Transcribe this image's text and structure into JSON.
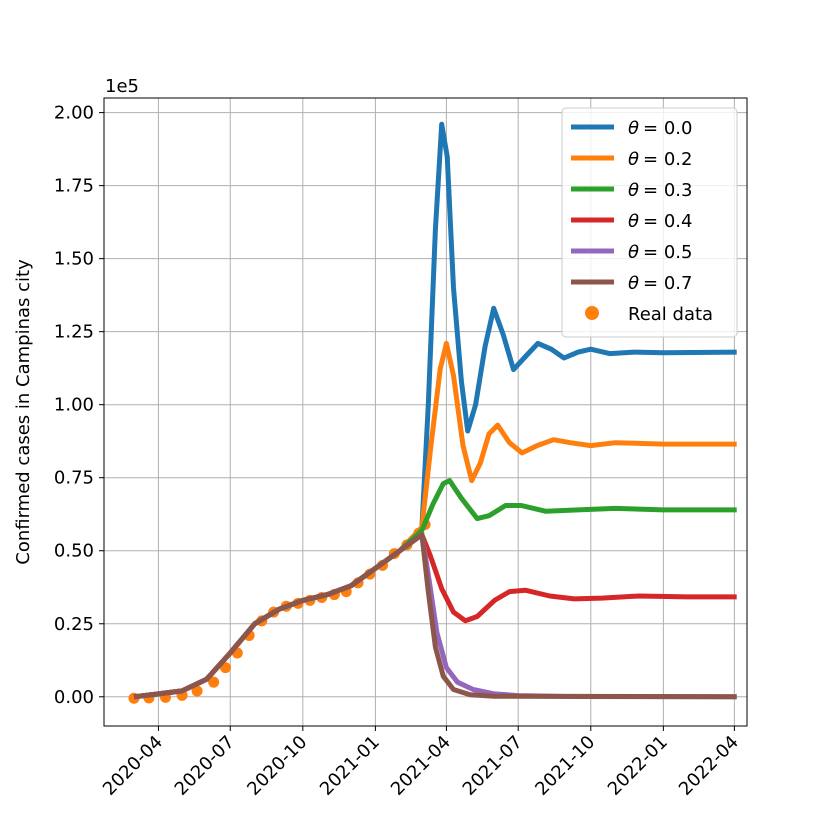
{
  "chart_data": {
    "type": "line",
    "ylabel": "Confirmed cases in Campinas city",
    "y_offset_label": "1e5",
    "ylim": [
      -0.1,
      2.05
    ],
    "y_ticks": [
      0.0,
      0.25,
      0.5,
      0.75,
      1.0,
      1.25,
      1.5,
      1.75,
      2.0
    ],
    "y_tick_labels": [
      "0.00",
      "0.25",
      "0.50",
      "0.75",
      "1.00",
      "1.25",
      "1.50",
      "1.75",
      "2.00"
    ],
    "xlim": [
      "2020-01-23",
      "2022-04-17"
    ],
    "x_ticks": [
      "2020-04-01",
      "2020-07-01",
      "2020-10-01",
      "2021-01-01",
      "2021-04-01",
      "2021-07-01",
      "2021-10-01",
      "2022-01-01",
      "2022-04-01"
    ],
    "x_tick_labels": [
      "2020-04",
      "2020-07",
      "2020-10",
      "2021-01",
      "2021-04",
      "2021-07",
      "2021-10",
      "2022-01",
      "2022-04"
    ],
    "grid": true,
    "legend_position": "top-right",
    "series": [
      {
        "name": "θ = 0.0",
        "legend_prefix": "θ",
        "legend_value": "= 0.0",
        "color": "#1f77b4",
        "points": [
          [
            "2020-03-01",
            0.0
          ],
          [
            "2020-04-01",
            0.01
          ],
          [
            "2020-05-01",
            0.02
          ],
          [
            "2020-06-01",
            0.06
          ],
          [
            "2020-07-01",
            0.15
          ],
          [
            "2020-08-01",
            0.25
          ],
          [
            "2020-09-01",
            0.3
          ],
          [
            "2020-10-01",
            0.33
          ],
          [
            "2020-11-01",
            0.35
          ],
          [
            "2020-12-01",
            0.38
          ],
          [
            "2021-01-01",
            0.44
          ],
          [
            "2021-02-01",
            0.5
          ],
          [
            "2021-03-01",
            0.58
          ],
          [
            "2021-03-09",
            1.0
          ],
          [
            "2021-03-18",
            1.6
          ],
          [
            "2021-03-26",
            1.96
          ],
          [
            "2021-04-02",
            1.85
          ],
          [
            "2021-04-10",
            1.4
          ],
          [
            "2021-04-20",
            1.08
          ],
          [
            "2021-04-28",
            0.91
          ],
          [
            "2021-05-08",
            1.0
          ],
          [
            "2021-05-20",
            1.2
          ],
          [
            "2021-05-31",
            1.33
          ],
          [
            "2021-06-12",
            1.24
          ],
          [
            "2021-06-25",
            1.12
          ],
          [
            "2021-07-12",
            1.17
          ],
          [
            "2021-07-26",
            1.21
          ],
          [
            "2021-08-12",
            1.19
          ],
          [
            "2021-08-28",
            1.16
          ],
          [
            "2021-09-15",
            1.18
          ],
          [
            "2021-10-01",
            1.19
          ],
          [
            "2021-10-25",
            1.175
          ],
          [
            "2021-11-25",
            1.18
          ],
          [
            "2022-01-01",
            1.178
          ],
          [
            "2022-04-04",
            1.18
          ]
        ]
      },
      {
        "name": "θ = 0.2",
        "legend_prefix": "θ",
        "legend_value": "= 0.2",
        "color": "#ff7f0e",
        "points": [
          [
            "2020-03-01",
            0.0
          ],
          [
            "2020-04-01",
            0.01
          ],
          [
            "2020-05-01",
            0.02
          ],
          [
            "2020-06-01",
            0.06
          ],
          [
            "2020-07-01",
            0.15
          ],
          [
            "2020-08-01",
            0.25
          ],
          [
            "2020-09-01",
            0.3
          ],
          [
            "2020-10-01",
            0.33
          ],
          [
            "2020-11-01",
            0.35
          ],
          [
            "2020-12-01",
            0.38
          ],
          [
            "2021-01-01",
            0.44
          ],
          [
            "2021-02-01",
            0.5
          ],
          [
            "2021-03-01",
            0.58
          ],
          [
            "2021-03-12",
            0.85
          ],
          [
            "2021-03-24",
            1.12
          ],
          [
            "2021-04-01",
            1.21
          ],
          [
            "2021-04-10",
            1.1
          ],
          [
            "2021-04-22",
            0.86
          ],
          [
            "2021-05-03",
            0.74
          ],
          [
            "2021-05-14",
            0.8
          ],
          [
            "2021-05-25",
            0.9
          ],
          [
            "2021-06-05",
            0.93
          ],
          [
            "2021-06-20",
            0.87
          ],
          [
            "2021-07-06",
            0.835
          ],
          [
            "2021-07-25",
            0.86
          ],
          [
            "2021-08-15",
            0.88
          ],
          [
            "2021-09-05",
            0.87
          ],
          [
            "2021-10-01",
            0.86
          ],
          [
            "2021-11-01",
            0.87
          ],
          [
            "2022-01-01",
            0.865
          ],
          [
            "2022-04-04",
            0.865
          ]
        ]
      },
      {
        "name": "θ = 0.3",
        "legend_prefix": "θ",
        "legend_value": "= 0.3",
        "color": "#2ca02c",
        "points": [
          [
            "2020-03-01",
            0.0
          ],
          [
            "2020-04-01",
            0.01
          ],
          [
            "2020-05-01",
            0.02
          ],
          [
            "2020-06-01",
            0.06
          ],
          [
            "2020-07-01",
            0.15
          ],
          [
            "2020-08-01",
            0.25
          ],
          [
            "2020-09-01",
            0.3
          ],
          [
            "2020-10-01",
            0.33
          ],
          [
            "2020-11-01",
            0.35
          ],
          [
            "2020-12-01",
            0.38
          ],
          [
            "2021-01-01",
            0.44
          ],
          [
            "2021-02-01",
            0.5
          ],
          [
            "2021-03-01",
            0.57
          ],
          [
            "2021-03-15",
            0.66
          ],
          [
            "2021-03-28",
            0.73
          ],
          [
            "2021-04-05",
            0.74
          ],
          [
            "2021-04-20",
            0.68
          ],
          [
            "2021-05-10",
            0.61
          ],
          [
            "2021-05-25",
            0.62
          ],
          [
            "2021-06-15",
            0.655
          ],
          [
            "2021-07-05",
            0.655
          ],
          [
            "2021-08-05",
            0.635
          ],
          [
            "2021-09-15",
            0.64
          ],
          [
            "2021-11-01",
            0.645
          ],
          [
            "2022-01-01",
            0.64
          ],
          [
            "2022-04-04",
            0.64
          ]
        ]
      },
      {
        "name": "θ = 0.4",
        "legend_prefix": "θ",
        "legend_value": "= 0.4",
        "color": "#d62728",
        "points": [
          [
            "2020-03-01",
            0.0
          ],
          [
            "2020-04-01",
            0.01
          ],
          [
            "2020-05-01",
            0.02
          ],
          [
            "2020-06-01",
            0.06
          ],
          [
            "2020-07-01",
            0.15
          ],
          [
            "2020-08-01",
            0.25
          ],
          [
            "2020-09-01",
            0.3
          ],
          [
            "2020-10-01",
            0.33
          ],
          [
            "2020-11-01",
            0.35
          ],
          [
            "2020-12-01",
            0.38
          ],
          [
            "2021-01-01",
            0.44
          ],
          [
            "2021-02-01",
            0.5
          ],
          [
            "2021-03-01",
            0.555
          ],
          [
            "2021-03-12",
            0.48
          ],
          [
            "2021-03-26",
            0.37
          ],
          [
            "2021-04-10",
            0.29
          ],
          [
            "2021-04-25",
            0.26
          ],
          [
            "2021-05-10",
            0.275
          ],
          [
            "2021-06-01",
            0.33
          ],
          [
            "2021-06-20",
            0.36
          ],
          [
            "2021-07-10",
            0.365
          ],
          [
            "2021-08-10",
            0.345
          ],
          [
            "2021-09-10",
            0.335
          ],
          [
            "2021-10-15",
            0.338
          ],
          [
            "2021-12-01",
            0.345
          ],
          [
            "2022-02-01",
            0.342
          ],
          [
            "2022-04-04",
            0.342
          ]
        ]
      },
      {
        "name": "θ = 0.5",
        "legend_prefix": "θ",
        "legend_value": "= 0.5",
        "color": "#9467bd",
        "points": [
          [
            "2020-03-01",
            0.0
          ],
          [
            "2020-04-01",
            0.01
          ],
          [
            "2020-05-01",
            0.02
          ],
          [
            "2020-06-01",
            0.06
          ],
          [
            "2020-07-01",
            0.15
          ],
          [
            "2020-08-01",
            0.25
          ],
          [
            "2020-09-01",
            0.3
          ],
          [
            "2020-10-01",
            0.33
          ],
          [
            "2020-11-01",
            0.35
          ],
          [
            "2020-12-01",
            0.38
          ],
          [
            "2021-01-01",
            0.44
          ],
          [
            "2021-02-01",
            0.5
          ],
          [
            "2021-03-01",
            0.555
          ],
          [
            "2021-03-10",
            0.4
          ],
          [
            "2021-03-20",
            0.22
          ],
          [
            "2021-04-01",
            0.1
          ],
          [
            "2021-04-15",
            0.05
          ],
          [
            "2021-05-05",
            0.025
          ],
          [
            "2021-06-01",
            0.01
          ],
          [
            "2021-07-01",
            0.004
          ],
          [
            "2021-09-01",
            0.001
          ],
          [
            "2022-04-04",
            0.0
          ]
        ]
      },
      {
        "name": "θ = 0.7",
        "legend_prefix": "θ",
        "legend_value": "= 0.7",
        "color": "#8c564b",
        "points": [
          [
            "2020-03-01",
            0.0
          ],
          [
            "2020-04-01",
            0.01
          ],
          [
            "2020-05-01",
            0.02
          ],
          [
            "2020-06-01",
            0.06
          ],
          [
            "2020-07-01",
            0.15
          ],
          [
            "2020-08-01",
            0.25
          ],
          [
            "2020-09-01",
            0.3
          ],
          [
            "2020-10-01",
            0.33
          ],
          [
            "2020-11-01",
            0.35
          ],
          [
            "2020-12-01",
            0.38
          ],
          [
            "2021-01-01",
            0.44
          ],
          [
            "2021-02-01",
            0.5
          ],
          [
            "2021-03-01",
            0.555
          ],
          [
            "2021-03-09",
            0.36
          ],
          [
            "2021-03-18",
            0.17
          ],
          [
            "2021-03-28",
            0.07
          ],
          [
            "2021-04-10",
            0.025
          ],
          [
            "2021-05-01",
            0.007
          ],
          [
            "2021-06-01",
            0.002
          ],
          [
            "2022-04-04",
            0.0
          ]
        ]
      }
    ],
    "real_data": {
      "name": "Real data",
      "color": "#ff7f0e",
      "points": [
        [
          "2020-03-01",
          -0.005
        ],
        [
          "2020-03-20",
          -0.004
        ],
        [
          "2020-04-10",
          -0.002
        ],
        [
          "2020-05-01",
          0.005
        ],
        [
          "2020-05-20",
          0.02
        ],
        [
          "2020-06-10",
          0.05
        ],
        [
          "2020-06-25",
          0.1
        ],
        [
          "2020-07-10",
          0.15
        ],
        [
          "2020-07-25",
          0.21
        ],
        [
          "2020-08-10",
          0.26
        ],
        [
          "2020-08-25",
          0.29
        ],
        [
          "2020-09-10",
          0.31
        ],
        [
          "2020-09-25",
          0.32
        ],
        [
          "2020-10-10",
          0.33
        ],
        [
          "2020-10-25",
          0.34
        ],
        [
          "2020-11-10",
          0.35
        ],
        [
          "2020-11-25",
          0.36
        ],
        [
          "2020-12-10",
          0.39
        ],
        [
          "2020-12-25",
          0.42
        ],
        [
          "2021-01-10",
          0.45
        ],
        [
          "2021-01-25",
          0.49
        ],
        [
          "2021-02-10",
          0.52
        ],
        [
          "2021-02-25",
          0.56
        ],
        [
          "2021-03-05",
          0.59
        ]
      ]
    }
  }
}
